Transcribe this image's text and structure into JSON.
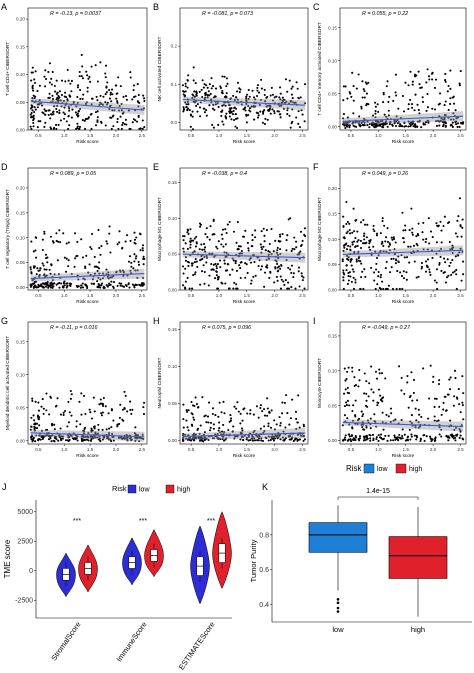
{
  "chart_data": [
    {
      "type": "scatter",
      "panel": "A",
      "ylabel": "T cell CD4+ CIBERSORT",
      "xlabel": "Risk score",
      "stat": "R = -0.13, p = 0.0037",
      "xticks": [
        "0.5",
        "1.0",
        "1.5",
        "2.0",
        "2.5"
      ],
      "yticks": [
        "0.00",
        "0.05",
        "0.10",
        "0.15",
        "0.20"
      ],
      "xlim": [
        0.3,
        2.6
      ],
      "ylim": [
        0,
        0.22
      ],
      "fit": {
        "y0": 0.052,
        "y1": 0.036
      },
      "spread": 0.9,
      "floor": false,
      "seed": 11
    },
    {
      "type": "scatter",
      "panel": "B",
      "ylabel": "NK cell activated CIBERSORT",
      "xlabel": "Risk score",
      "stat": "R = -0.081, p = 0.073",
      "xticks": [
        "0.5",
        "1.0",
        "1.5",
        "2.0",
        "2.5"
      ],
      "yticks": [
        "0.0",
        "0.1",
        "0.2"
      ],
      "xlim": [
        0.3,
        2.6
      ],
      "ylim": [
        -0.02,
        0.3
      ],
      "fit": {
        "y0": 0.06,
        "y1": 0.045
      },
      "spread": 0.6,
      "floor": false,
      "seed": 23
    },
    {
      "type": "scatter",
      "panel": "C",
      "ylabel": "T cell CD4+ memory activated CIBERSORT",
      "xlabel": "Risk score",
      "stat": "R = 0.055, p = 0.22",
      "xticks": [
        "0.5",
        "1.0",
        "1.5",
        "2.0",
        "2.5"
      ],
      "yticks": [
        "0.00",
        "0.05",
        "0.10",
        "0.15"
      ],
      "xlim": [
        0.3,
        2.6
      ],
      "ylim": [
        -0.005,
        0.18
      ],
      "fit": {
        "y0": 0.008,
        "y1": 0.016
      },
      "spread": 0.5,
      "floor": true,
      "seed": 37
    },
    {
      "type": "scatter",
      "panel": "D",
      "ylabel": "T cell regulatory (Tregs) CIBERSORT",
      "xlabel": "Risk score",
      "stat": "R = 0.089, p = 0.05",
      "xticks": [
        "0.5",
        "1.0",
        "1.5",
        "2.0",
        "2.5"
      ],
      "yticks": [
        "0.00",
        "0.05",
        "0.10",
        "0.15",
        "0.20"
      ],
      "xlim": [
        0.3,
        2.6
      ],
      "ylim": [
        -0.005,
        0.24
      ],
      "fit": {
        "y0": 0.018,
        "y1": 0.028
      },
      "spread": 0.5,
      "floor": true,
      "seed": 41
    },
    {
      "type": "scatter",
      "panel": "E",
      "ylabel": "Macrophage M1 CIBERSORT",
      "xlabel": "Risk score",
      "stat": "R = -0.038, p = 0.4",
      "xticks": [
        "0.5",
        "1.0",
        "1.5",
        "2.0",
        "2.5"
      ],
      "yticks": [
        "0.00",
        "0.05",
        "0.10",
        "0.15"
      ],
      "xlim": [
        0.3,
        2.6
      ],
      "ylim": [
        0,
        0.17
      ],
      "fit": {
        "y0": 0.05,
        "y1": 0.045
      },
      "spread": 0.9,
      "floor": false,
      "seed": 53
    },
    {
      "type": "scatter",
      "panel": "F",
      "ylabel": "Macrophage M2 CIBERSORT",
      "xlabel": "Risk score",
      "stat": "R = 0.049, p = 0.26",
      "xticks": [
        "0.5",
        "1.0",
        "1.5",
        "2.0",
        "2.5"
      ],
      "yticks": [
        "0.00",
        "0.05",
        "0.10",
        "0.15",
        "0.20"
      ],
      "xlim": [
        0.3,
        2.6
      ],
      "ylim": [
        0,
        0.24
      ],
      "fit": {
        "y0": 0.07,
        "y1": 0.078
      },
      "spread": 1.0,
      "floor": false,
      "seed": 67
    },
    {
      "type": "scatter",
      "panel": "G",
      "ylabel": "Myeloid dendritic cell activated CIBERSORT",
      "xlabel": "Risk score",
      "stat": "R = -0.11, p = 0.016",
      "xticks": [
        "0.5",
        "1.0",
        "1.5",
        "2.0",
        "2.5"
      ],
      "yticks": [
        "0.00",
        "0.05",
        "0.10",
        "0.15"
      ],
      "xlim": [
        0.3,
        2.6
      ],
      "ylim": [
        -0.005,
        0.18
      ],
      "fit": {
        "y0": 0.012,
        "y1": 0.006
      },
      "spread": 0.45,
      "floor": true,
      "seed": 71
    },
    {
      "type": "scatter",
      "panel": "H",
      "ylabel": "Neutrophil CIBERSORT",
      "xlabel": "Risk score",
      "stat": "R = 0.075, p = 0.096",
      "xticks": [
        "0.5",
        "1.0",
        "1.5",
        "2.0",
        "2.5"
      ],
      "yticks": [
        "0.00",
        "0.05",
        "0.10",
        "0.15"
      ],
      "xlim": [
        0.3,
        2.6
      ],
      "ylim": [
        -0.005,
        0.16
      ],
      "fit": {
        "y0": 0.005,
        "y1": 0.01
      },
      "spread": 0.4,
      "floor": true,
      "seed": 83
    },
    {
      "type": "scatter",
      "panel": "I",
      "ylabel": "Monocyte CIBERSORT",
      "xlabel": "Risk score",
      "stat": "R = -0.049, p = 0.27",
      "xticks": [
        "0.5",
        "1.0",
        "1.5",
        "2.0",
        "2.5"
      ],
      "yticks": [
        "0.00",
        "0.05",
        "0.10",
        "0.15"
      ],
      "xlim": [
        0.3,
        2.6
      ],
      "ylim": [
        -0.005,
        0.17
      ],
      "fit": {
        "y0": 0.026,
        "y1": 0.02
      },
      "spread": 0.6,
      "floor": true,
      "seed": 97
    },
    {
      "type": "violin",
      "panel": "J",
      "ylabel": "TME score",
      "legend": {
        "title": "Risk",
        "entries": [
          {
            "name": "low",
            "color": "#2d2dd6"
          },
          {
            "name": "high",
            "color": "#e0202a"
          }
        ]
      },
      "categories": [
        "StromalScore",
        "ImmuneScore",
        "ESTIMATEScore"
      ],
      "yticks": [
        "-2500",
        "0",
        "2500",
        "5000"
      ],
      "ylim": [
        -4000,
        6000
      ],
      "significance": [
        "***",
        "***",
        "***"
      ],
      "groups": [
        {
          "category": "StromalScore",
          "low": {
            "median": -300,
            "q1": -800,
            "q3": 200,
            "min": -2200,
            "max": 1500
          },
          "high": {
            "median": 200,
            "q1": -300,
            "q3": 700,
            "min": -1800,
            "max": 2200
          }
        },
        {
          "category": "ImmuneScore",
          "low": {
            "median": 700,
            "q1": 200,
            "q3": 1200,
            "min": -1200,
            "max": 2800
          },
          "high": {
            "median": 1300,
            "q1": 800,
            "q3": 1800,
            "min": -500,
            "max": 3500
          }
        },
        {
          "category": "ESTIMATEScore",
          "low": {
            "median": 400,
            "q1": -400,
            "q3": 1200,
            "min": -2800,
            "max": 3800
          },
          "high": {
            "median": 1500,
            "q1": 700,
            "q3": 2300,
            "min": -1500,
            "max": 5000
          }
        }
      ]
    },
    {
      "type": "box",
      "panel": "K",
      "ylabel": "Tumor Purity",
      "legend": {
        "title": "Risk",
        "entries": [
          {
            "name": "low",
            "color": "#1e7fd6"
          },
          {
            "name": "high",
            "color": "#e0202a"
          }
        ]
      },
      "categories": [
        "low",
        "high"
      ],
      "yticks": [
        "0.4",
        "0.6",
        "0.8"
      ],
      "ylim": [
        0.3,
        1.0
      ],
      "pvalue": "1.4e-15",
      "groups": [
        {
          "name": "low",
          "median": 0.8,
          "q1": 0.7,
          "q3": 0.87,
          "min": 0.48,
          "max": 0.97,
          "outliers": [
            0.43,
            0.41,
            0.38,
            0.36
          ]
        },
        {
          "name": "high",
          "median": 0.68,
          "q1": 0.55,
          "q3": 0.79,
          "min": 0.33,
          "max": 0.96,
          "outliers": []
        }
      ]
    }
  ]
}
